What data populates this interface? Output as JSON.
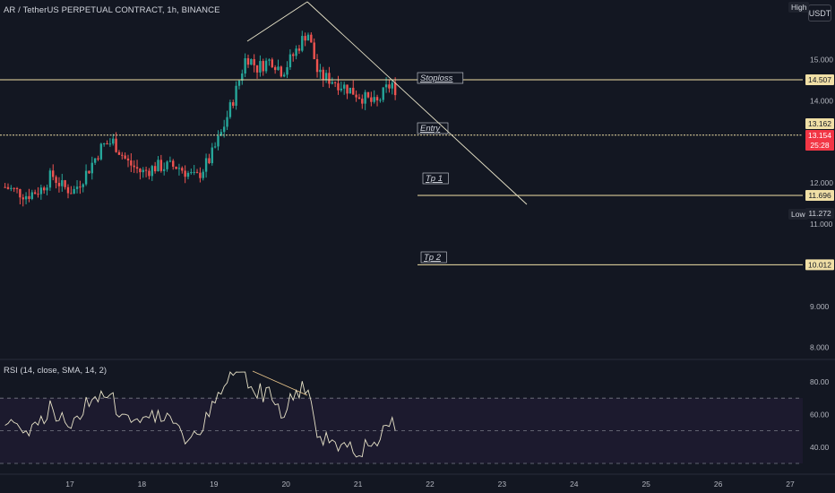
{
  "header": {
    "symbol_title": "AR / TetherUS PERPETUAL CONTRACT, 1h, BINANCE",
    "currency_button": "USDT",
    "high_label": "High"
  },
  "indicator": {
    "title": "RSI (14, close, SMA, 14, 2)"
  },
  "price_axis": {
    "ticks": [
      "15.000",
      "14.000",
      "12.000",
      "11.000",
      "9.000",
      "8.000"
    ]
  },
  "rsi_axis": {
    "ticks": [
      "80.00",
      "60.00",
      "40.00"
    ]
  },
  "time_axis": {
    "ticks": [
      "17",
      "18",
      "19",
      "20",
      "21",
      "22",
      "23",
      "24",
      "25",
      "26",
      "27"
    ]
  },
  "annotations": {
    "stoploss": "Stoploss",
    "entry": "Entry",
    "tp1": "Tp 1",
    "tp2": "Tp 2"
  },
  "price_tags": {
    "stoploss_value": "14.507",
    "entry_value": "13.162",
    "last_price": "13.154",
    "countdown": "25:28",
    "tp1_value": "11.696",
    "low_label": "Low",
    "low_value": "11.272",
    "tp2_value": "10.012"
  },
  "colors": {
    "background": "#131722",
    "up_candle": "#26a69a",
    "down_candle": "#ef5350",
    "level_line": "#f0dfa6",
    "last_price_tag": "#f23645",
    "text": "#d1d4dc"
  },
  "chart_data": {
    "type": "candlestick",
    "symbol": "AR / TetherUS PERPETUAL CONTRACT",
    "interval": "1h",
    "x_ticks": [
      "17",
      "18",
      "19",
      "20",
      "21",
      "22",
      "23",
      "24",
      "25",
      "26",
      "27"
    ],
    "y_ticks": [
      15,
      14,
      12,
      11,
      9,
      8
    ],
    "ylim": [
      7.9,
      16.4
    ],
    "levels": [
      {
        "name": "Stoploss",
        "value": 14.507
      },
      {
        "name": "Entry",
        "value": 13.162
      },
      {
        "name": "Tp 1",
        "value": 11.696
      },
      {
        "name": "Tp 2",
        "value": 10.012
      }
    ],
    "high_low": {
      "low": 11.272
    },
    "last_price": 13.154,
    "close_path": [
      {
        "day": 16.1,
        "price": 11.9
      },
      {
        "day": 16.4,
        "price": 11.7
      },
      {
        "day": 16.6,
        "price": 11.85
      },
      {
        "day": 16.75,
        "price": 12.2
      },
      {
        "day": 16.9,
        "price": 11.9
      },
      {
        "day": 17.05,
        "price": 11.8
      },
      {
        "day": 17.25,
        "price": 12.3
      },
      {
        "day": 17.45,
        "price": 12.9
      },
      {
        "day": 17.6,
        "price": 13.0
      },
      {
        "day": 17.8,
        "price": 12.5
      },
      {
        "day": 18.0,
        "price": 12.25
      },
      {
        "day": 18.2,
        "price": 12.4
      },
      {
        "day": 18.5,
        "price": 12.4
      },
      {
        "day": 18.75,
        "price": 12.1
      },
      {
        "day": 18.95,
        "price": 12.6
      },
      {
        "day": 19.1,
        "price": 13.2
      },
      {
        "day": 19.3,
        "price": 14.2
      },
      {
        "day": 19.45,
        "price": 15.1
      },
      {
        "day": 19.6,
        "price": 14.8
      },
      {
        "day": 19.8,
        "price": 15.0
      },
      {
        "day": 19.95,
        "price": 14.7
      },
      {
        "day": 20.1,
        "price": 15.1
      },
      {
        "day": 20.3,
        "price": 15.7
      },
      {
        "day": 20.45,
        "price": 14.6
      },
      {
        "day": 20.65,
        "price": 14.5
      },
      {
        "day": 20.85,
        "price": 14.3
      },
      {
        "day": 21.05,
        "price": 14.1
      },
      {
        "day": 21.25,
        "price": 13.9
      },
      {
        "day": 21.4,
        "price": 14.3
      },
      {
        "day": 21.5,
        "price": 14.45
      },
      {
        "day": 21.55,
        "price": 13.15
      }
    ],
    "rsi": {
      "name": "RSI (14, close, SMA, 14, 2)",
      "y_ticks": [
        80,
        60,
        40
      ],
      "bands": [
        70,
        50,
        30
      ]
    }
  }
}
